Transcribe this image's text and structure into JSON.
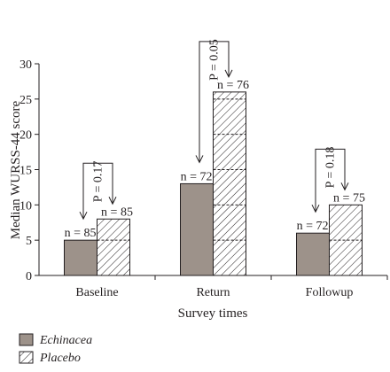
{
  "chart_data": {
    "type": "bar",
    "title": "",
    "xlabel": "Survey times",
    "ylabel": "Median WURSS-44 score",
    "ylim": [
      0,
      30
    ],
    "yticks": [
      "0",
      "5",
      "10",
      "15",
      "20",
      "25",
      "30"
    ],
    "grid": false,
    "legend_position": "bottom-left",
    "categories": [
      "Baseline",
      "Return",
      "Followup"
    ],
    "series": [
      {
        "name": "Echinacea",
        "values": [
          5,
          13,
          6
        ],
        "n_labels": [
          "n = 85",
          "n = 72",
          "n = 72"
        ],
        "color": "#9d928a",
        "pattern": "solid"
      },
      {
        "name": "Placebo",
        "values": [
          8,
          26,
          10
        ],
        "n_labels": [
          "n = 85",
          "n = 76",
          "n = 75"
        ],
        "color": "#ffffff",
        "pattern": "hatched"
      }
    ],
    "p_values": [
      "P = 0.17",
      "P = 0.05",
      "P = 0.18"
    ]
  }
}
